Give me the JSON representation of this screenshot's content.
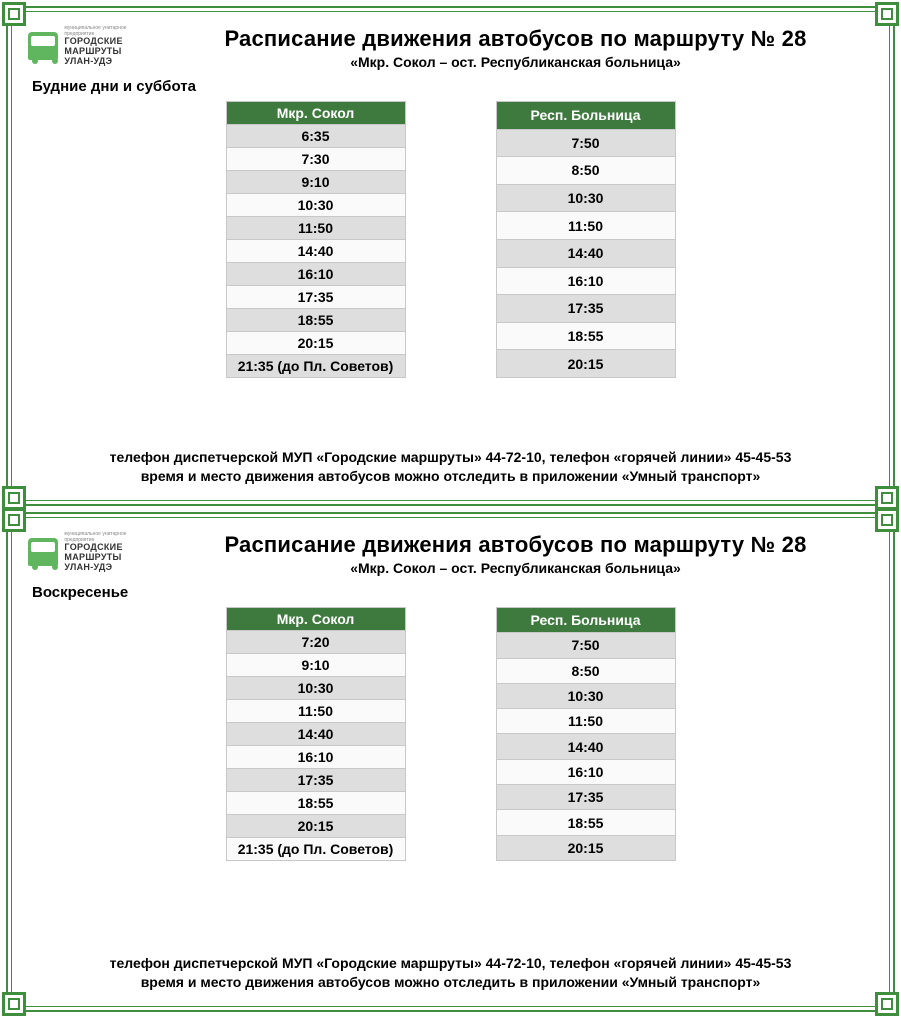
{
  "logo": {
    "line1": "муниципальное унитарное предприятие",
    "line2": "ГОРОДСКИЕ",
    "line3": "МАРШРУТЫ",
    "line4": "УЛАН-УДЭ"
  },
  "title": "Расписание движения автобусов по маршруту № 28",
  "subtitle": "«Мкр. Сокол – ост. Республиканская больница»",
  "colors": {
    "border": "#3e8e3e",
    "header_bg": "#3e7a3e",
    "row_alt": "#dedede",
    "row_base": "#fafafa"
  },
  "panels": [
    {
      "days_label": "Будние дни и суббота",
      "tables": [
        {
          "header": "Мкр. Сокол",
          "rows": [
            "6:35",
            "7:30",
            "9:10",
            "10:30",
            "11:50",
            "14:40",
            "16:10",
            "17:35",
            "18:55",
            "20:15",
            "21:35 (до Пл. Советов)"
          ]
        },
        {
          "header": "Респ. Больница",
          "rows": [
            "7:50",
            "8:50",
            "10:30",
            "11:50",
            "14:40",
            "16:10",
            "17:35",
            "18:55",
            "20:15"
          ]
        }
      ]
    },
    {
      "days_label": "Воскресенье",
      "tables": [
        {
          "header": "Мкр. Сокол",
          "rows": [
            "7:20",
            "9:10",
            "10:30",
            "11:50",
            "14:40",
            "16:10",
            "17:35",
            "18:55",
            "20:15",
            "21:35 (до Пл. Советов)"
          ]
        },
        {
          "header": "Респ. Больница",
          "rows": [
            "7:50",
            "8:50",
            "10:30",
            "11:50",
            "14:40",
            "16:10",
            "17:35",
            "18:55",
            "20:15"
          ]
        }
      ]
    }
  ],
  "footer_line1": "телефон диспетчерской МУП «Городские маршруты» 44-72-10, телефон «горячей линии»  45-45-53",
  "footer_line2": "время и место движения автобусов можно отследить в приложении «Умный транспорт»"
}
